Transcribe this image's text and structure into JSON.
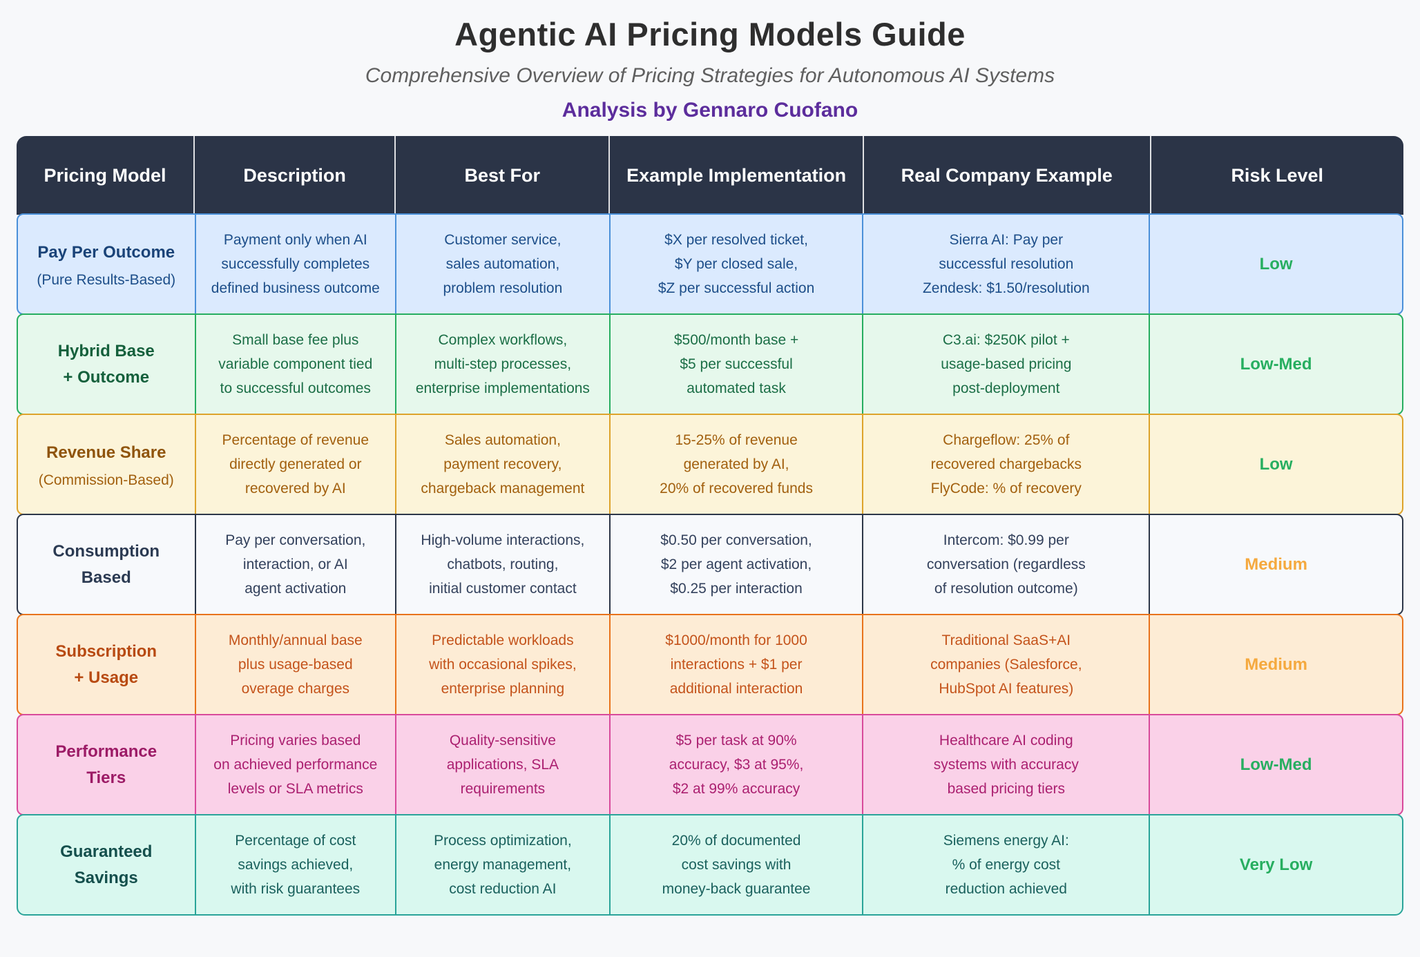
{
  "page": {
    "background": "#f7f8fa"
  },
  "header": {
    "title": "Agentic AI Pricing Models Guide",
    "subtitle": "Comprehensive Overview of Pricing Strategies for Autonomous AI Systems",
    "byline": "Analysis by Gennaro Cuofano",
    "title_color": "#2e2e2e",
    "subtitle_color": "#5f5f5f",
    "byline_color": "#5c2d9c"
  },
  "table": {
    "header_bg": "#2b3447",
    "header_text_color": "#ffffff",
    "column_widths": [
      "12.75%",
      "14.5%",
      "15.45%",
      "18.3%",
      "20.7%",
      "18.3%"
    ],
    "headers": [
      "Pricing Model",
      "Description",
      "Best For",
      "Example Implementation",
      "Real Company Example",
      "Risk Level"
    ],
    "rows": [
      {
        "model": "Pay Per Outcome",
        "model_sub": "(Pure Results-Based)",
        "description": "Payment only when AI\nsuccessfully completes\ndefined business outcome",
        "best_for": "Customer service,\nsales automation,\nproblem resolution",
        "example": "$X per resolved ticket,\n$Y per closed sale,\n$Z per successful action",
        "company": "Sierra AI: Pay per\nsuccessful resolution\nZendesk: $1.50/resolution",
        "risk": "Low",
        "colors": {
          "bg": "#dbeafe",
          "border": "#4a90d9",
          "text": "#1d4e89",
          "title": "#1a4378",
          "risk": "#27ae60"
        }
      },
      {
        "model": "Hybrid Base\n+ Outcome",
        "model_sub": "",
        "description": "Small base fee plus\nvariable component tied\nto successful outcomes",
        "best_for": "Complex workflows,\nmulti-step processes,\nenterprise implementations",
        "example": "$500/month base +\n$5 per successful\nautomated task",
        "company": "C3.ai: $250K pilot +\nusage-based pricing\npost-deployment",
        "risk": "Low-Med",
        "colors": {
          "bg": "#e6f8ec",
          "border": "#27ae60",
          "text": "#1b6e46",
          "title": "#15603c",
          "risk": "#27ae60"
        }
      },
      {
        "model": "Revenue Share",
        "model_sub": "(Commission-Based)",
        "description": "Percentage of revenue\ndirectly generated or\nrecovered by AI",
        "best_for": "Sales automation,\npayment recovery,\nchargeback management",
        "example": "15-25% of revenue\ngenerated by AI,\n20% of recovered funds",
        "company": "Chargeflow: 25% of\nrecovered chargebacks\nFlyCode: % of recovery",
        "risk": "Low",
        "colors": {
          "bg": "#fcf4d9",
          "border": "#dda32b",
          "text": "#a2600f",
          "title": "#8f540c",
          "risk": "#27ae60"
        }
      },
      {
        "model": "Consumption\nBased",
        "model_sub": "",
        "description": "Pay per conversation,\ninteraction, or AI\nagent activation",
        "best_for": "High-volume interactions,\nchatbots, routing,\ninitial customer contact",
        "example": "$0.50 per conversation,\n$2 per agent activation,\n$0.25 per interaction",
        "company": "Intercom: $0.99 per\nconversation (regardless\nof resolution outcome)",
        "risk": "Medium",
        "colors": {
          "bg": "#f7f9fc",
          "border": "#2d3748",
          "text": "#33415c",
          "title": "#2b3a52",
          "risk": "#f5a93e"
        }
      },
      {
        "model": "Subscription\n+ Usage",
        "model_sub": "",
        "description": "Monthly/annual base\nplus usage-based\noverage charges",
        "best_for": "Predictable workloads\nwith occasional spikes,\nenterprise planning",
        "example": "$1000/month for 1000\ninteractions + $1 per\nadditional interaction",
        "company": "Traditional SaaS+AI\ncompanies (Salesforce,\nHubSpot AI features)",
        "risk": "Medium",
        "colors": {
          "bg": "#fdecd5",
          "border": "#e8731c",
          "text": "#c4531b",
          "title": "#b84a12",
          "risk": "#f5a93e"
        }
      },
      {
        "model": "Performance\nTiers",
        "model_sub": "",
        "description": "Pricing varies based\non achieved performance\nlevels or SLA metrics",
        "best_for": "Quality-sensitive\napplications, SLA\nrequirements",
        "example": "$5 per task at 90%\naccuracy, $3 at 95%,\n$2 at 99% accuracy",
        "company": "Healthcare AI coding\nsystems with accuracy\nbased pricing tiers",
        "risk": "Low-Med",
        "colors": {
          "bg": "#fad1e8",
          "border": "#d84a9b",
          "text": "#ab2070",
          "title": "#9c1b66",
          "risk": "#27ae60"
        }
      },
      {
        "model": "Guaranteed\nSavings",
        "model_sub": "",
        "description": "Percentage of cost\nsavings achieved,\nwith risk guarantees",
        "best_for": "Process optimization,\nenergy management,\ncost reduction AI",
        "example": "20% of documented\ncost savings with\nmoney-back guarantee",
        "company": "Siemens energy AI:\n% of energy cost\nreduction achieved",
        "risk": "Very Low",
        "colors": {
          "bg": "#d9f8ef",
          "border": "#2aa499",
          "text": "#1a615d",
          "title": "#144f4c",
          "risk": "#27ae60"
        }
      }
    ]
  }
}
